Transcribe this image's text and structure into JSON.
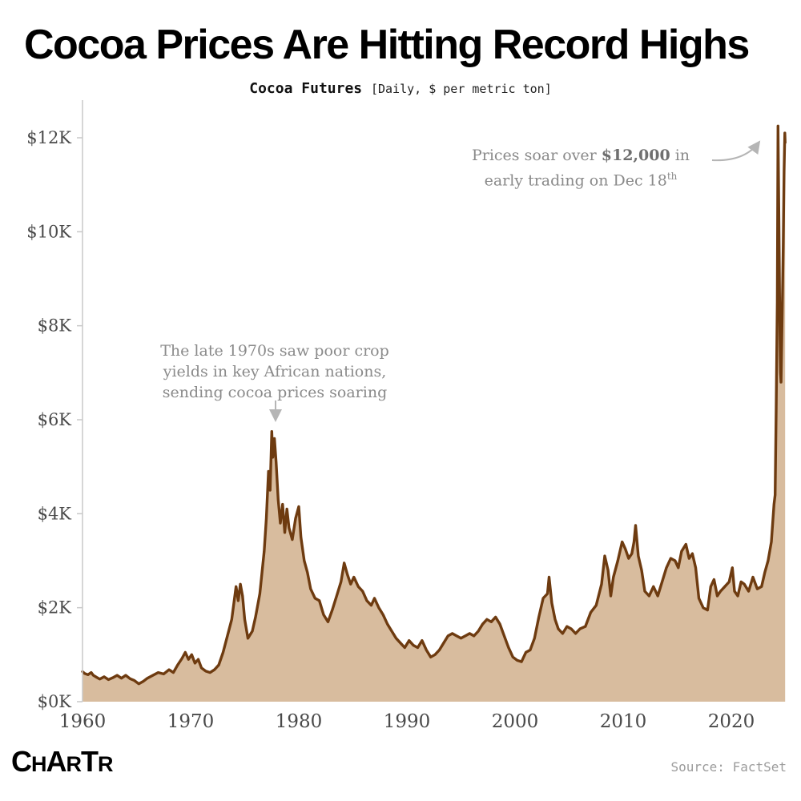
{
  "header": {
    "title": "Cocoa Prices Are Hitting Record Highs",
    "subtitle_main": "Cocoa Futures ",
    "subtitle_detail": "[Daily, $ per metric ton]"
  },
  "annotations": {
    "peak_2024": {
      "line1_pre": "Prices soar over ",
      "line1_bold": "$12,000",
      "line1_post": " in",
      "line2": "early trading on Dec 18",
      "line2_sup": "th"
    },
    "seventies": {
      "text": "The late 1970s saw poor crop\nyields in key African nations,\nsending cocoa prices soaring"
    }
  },
  "footer": {
    "logo": "CHARTR",
    "source": "Source: FactSet"
  },
  "chart_data": {
    "type": "area",
    "title": "Cocoa Futures",
    "frequency": "Daily",
    "units": "$ per metric ton",
    "legend": "none",
    "grid": "off",
    "line_color": "#6E3B10",
    "fill_color": "#D8BC9E",
    "axis_color": "#c9c9c9",
    "x_domain": [
      1960,
      2025
    ],
    "y_domain": [
      0,
      12000
    ],
    "x_ticks": [
      1960,
      1970,
      1980,
      1990,
      2000,
      2010,
      2020
    ],
    "y_ticks": [
      {
        "value": 0,
        "label": "$0K"
      },
      {
        "value": 2000,
        "label": "$2K"
      },
      {
        "value": 4000,
        "label": "$4K"
      },
      {
        "value": 6000,
        "label": "$6K"
      },
      {
        "value": 8000,
        "label": "$8K"
      },
      {
        "value": 10000,
        "label": "$10K"
      },
      {
        "value": 12000,
        "label": "$12K"
      }
    ],
    "points": [
      [
        1960.0,
        640
      ],
      [
        1960.2,
        600
      ],
      [
        1960.5,
        575
      ],
      [
        1960.8,
        620
      ],
      [
        1961.0,
        560
      ],
      [
        1961.3,
        520
      ],
      [
        1961.6,
        480
      ],
      [
        1962.0,
        530
      ],
      [
        1962.4,
        470
      ],
      [
        1962.8,
        510
      ],
      [
        1963.2,
        560
      ],
      [
        1963.6,
        500
      ],
      [
        1964.0,
        560
      ],
      [
        1964.4,
        490
      ],
      [
        1964.8,
        450
      ],
      [
        1965.2,
        380
      ],
      [
        1965.6,
        430
      ],
      [
        1966.0,
        500
      ],
      [
        1966.5,
        560
      ],
      [
        1967.0,
        620
      ],
      [
        1967.5,
        590
      ],
      [
        1968.0,
        680
      ],
      [
        1968.4,
        620
      ],
      [
        1968.8,
        780
      ],
      [
        1969.2,
        920
      ],
      [
        1969.5,
        1050
      ],
      [
        1969.8,
        900
      ],
      [
        1970.1,
        1000
      ],
      [
        1970.4,
        820
      ],
      [
        1970.7,
        900
      ],
      [
        1971.0,
        720
      ],
      [
        1971.4,
        650
      ],
      [
        1971.8,
        620
      ],
      [
        1972.2,
        680
      ],
      [
        1972.6,
        780
      ],
      [
        1973.0,
        1050
      ],
      [
        1973.4,
        1400
      ],
      [
        1973.8,
        1750
      ],
      [
        1974.0,
        2100
      ],
      [
        1974.2,
        2450
      ],
      [
        1974.4,
        2150
      ],
      [
        1974.6,
        2500
      ],
      [
        1974.8,
        2250
      ],
      [
        1975.0,
        1750
      ],
      [
        1975.3,
        1350
      ],
      [
        1975.7,
        1500
      ],
      [
        1976.0,
        1800
      ],
      [
        1976.4,
        2300
      ],
      [
        1976.8,
        3200
      ],
      [
        1977.0,
        3900
      ],
      [
        1977.2,
        4900
      ],
      [
        1977.35,
        4500
      ],
      [
        1977.5,
        5750
      ],
      [
        1977.6,
        5200
      ],
      [
        1977.75,
        5600
      ],
      [
        1977.9,
        5100
      ],
      [
        1978.1,
        4300
      ],
      [
        1978.3,
        3800
      ],
      [
        1978.5,
        4200
      ],
      [
        1978.7,
        3600
      ],
      [
        1978.9,
        4100
      ],
      [
        1979.1,
        3700
      ],
      [
        1979.4,
        3450
      ],
      [
        1979.7,
        3900
      ],
      [
        1980.0,
        4150
      ],
      [
        1980.2,
        3500
      ],
      [
        1980.5,
        3000
      ],
      [
        1980.8,
        2750
      ],
      [
        1981.1,
        2400
      ],
      [
        1981.5,
        2200
      ],
      [
        1981.9,
        2150
      ],
      [
        1982.3,
        1850
      ],
      [
        1982.7,
        1700
      ],
      [
        1983.1,
        1950
      ],
      [
        1983.5,
        2250
      ],
      [
        1983.9,
        2550
      ],
      [
        1984.2,
        2950
      ],
      [
        1984.5,
        2700
      ],
      [
        1984.8,
        2500
      ],
      [
        1985.1,
        2650
      ],
      [
        1985.5,
        2450
      ],
      [
        1985.9,
        2350
      ],
      [
        1986.3,
        2150
      ],
      [
        1986.7,
        2050
      ],
      [
        1987.0,
        2200
      ],
      [
        1987.4,
        2000
      ],
      [
        1987.8,
        1850
      ],
      [
        1988.2,
        1650
      ],
      [
        1988.6,
        1500
      ],
      [
        1989.0,
        1350
      ],
      [
        1989.4,
        1250
      ],
      [
        1989.8,
        1150
      ],
      [
        1990.2,
        1300
      ],
      [
        1990.6,
        1200
      ],
      [
        1991.0,
        1150
      ],
      [
        1991.4,
        1300
      ],
      [
        1991.8,
        1100
      ],
      [
        1992.2,
        950
      ],
      [
        1992.6,
        1000
      ],
      [
        1993.0,
        1100
      ],
      [
        1993.4,
        1250
      ],
      [
        1993.8,
        1400
      ],
      [
        1994.2,
        1450
      ],
      [
        1994.6,
        1400
      ],
      [
        1995.0,
        1350
      ],
      [
        1995.4,
        1400
      ],
      [
        1995.8,
        1450
      ],
      [
        1996.2,
        1400
      ],
      [
        1996.6,
        1500
      ],
      [
        1997.0,
        1650
      ],
      [
        1997.4,
        1750
      ],
      [
        1997.8,
        1700
      ],
      [
        1998.2,
        1800
      ],
      [
        1998.6,
        1650
      ],
      [
        1999.0,
        1400
      ],
      [
        1999.4,
        1150
      ],
      [
        1999.8,
        950
      ],
      [
        2000.2,
        880
      ],
      [
        2000.6,
        850
      ],
      [
        2001.0,
        1050
      ],
      [
        2001.4,
        1100
      ],
      [
        2001.8,
        1350
      ],
      [
        2002.2,
        1800
      ],
      [
        2002.6,
        2200
      ],
      [
        2003.0,
        2300
      ],
      [
        2003.15,
        2650
      ],
      [
        2003.4,
        2100
      ],
      [
        2003.7,
        1750
      ],
      [
        2004.0,
        1550
      ],
      [
        2004.4,
        1450
      ],
      [
        2004.8,
        1600
      ],
      [
        2005.2,
        1550
      ],
      [
        2005.6,
        1450
      ],
      [
        2006.0,
        1550
      ],
      [
        2006.5,
        1600
      ],
      [
        2007.0,
        1900
      ],
      [
        2007.5,
        2050
      ],
      [
        2008.0,
        2500
      ],
      [
        2008.3,
        3100
      ],
      [
        2008.6,
        2800
      ],
      [
        2008.85,
        2250
      ],
      [
        2009.1,
        2650
      ],
      [
        2009.5,
        3000
      ],
      [
        2009.9,
        3400
      ],
      [
        2010.2,
        3250
      ],
      [
        2010.5,
        3050
      ],
      [
        2010.8,
        3150
      ],
      [
        2011.0,
        3400
      ],
      [
        2011.15,
        3750
      ],
      [
        2011.4,
        3100
      ],
      [
        2011.7,
        2800
      ],
      [
        2012.0,
        2350
      ],
      [
        2012.4,
        2250
      ],
      [
        2012.8,
        2450
      ],
      [
        2013.2,
        2250
      ],
      [
        2013.6,
        2550
      ],
      [
        2014.0,
        2850
      ],
      [
        2014.4,
        3050
      ],
      [
        2014.8,
        3000
      ],
      [
        2015.1,
        2850
      ],
      [
        2015.4,
        3200
      ],
      [
        2015.8,
        3350
      ],
      [
        2016.1,
        3050
      ],
      [
        2016.4,
        3150
      ],
      [
        2016.7,
        2850
      ],
      [
        2017.0,
        2200
      ],
      [
        2017.4,
        2000
      ],
      [
        2017.8,
        1950
      ],
      [
        2018.1,
        2450
      ],
      [
        2018.4,
        2600
      ],
      [
        2018.7,
        2250
      ],
      [
        2019.0,
        2350
      ],
      [
        2019.4,
        2450
      ],
      [
        2019.8,
        2550
      ],
      [
        2020.1,
        2850
      ],
      [
        2020.3,
        2350
      ],
      [
        2020.6,
        2250
      ],
      [
        2020.9,
        2550
      ],
      [
        2021.2,
        2500
      ],
      [
        2021.6,
        2350
      ],
      [
        2022.0,
        2650
      ],
      [
        2022.4,
        2400
      ],
      [
        2022.8,
        2450
      ],
      [
        2023.1,
        2750
      ],
      [
        2023.4,
        3000
      ],
      [
        2023.7,
        3400
      ],
      [
        2023.95,
        4200
      ],
      [
        2024.05,
        4400
      ],
      [
        2024.15,
        6200
      ],
      [
        2024.25,
        8500
      ],
      [
        2024.32,
        12250
      ],
      [
        2024.4,
        10300
      ],
      [
        2024.48,
        8200
      ],
      [
        2024.55,
        7000
      ],
      [
        2024.6,
        6800
      ],
      [
        2024.7,
        8200
      ],
      [
        2024.8,
        9700
      ],
      [
        2024.88,
        11300
      ],
      [
        2024.95,
        12100
      ],
      [
        2024.98,
        11900
      ]
    ]
  }
}
